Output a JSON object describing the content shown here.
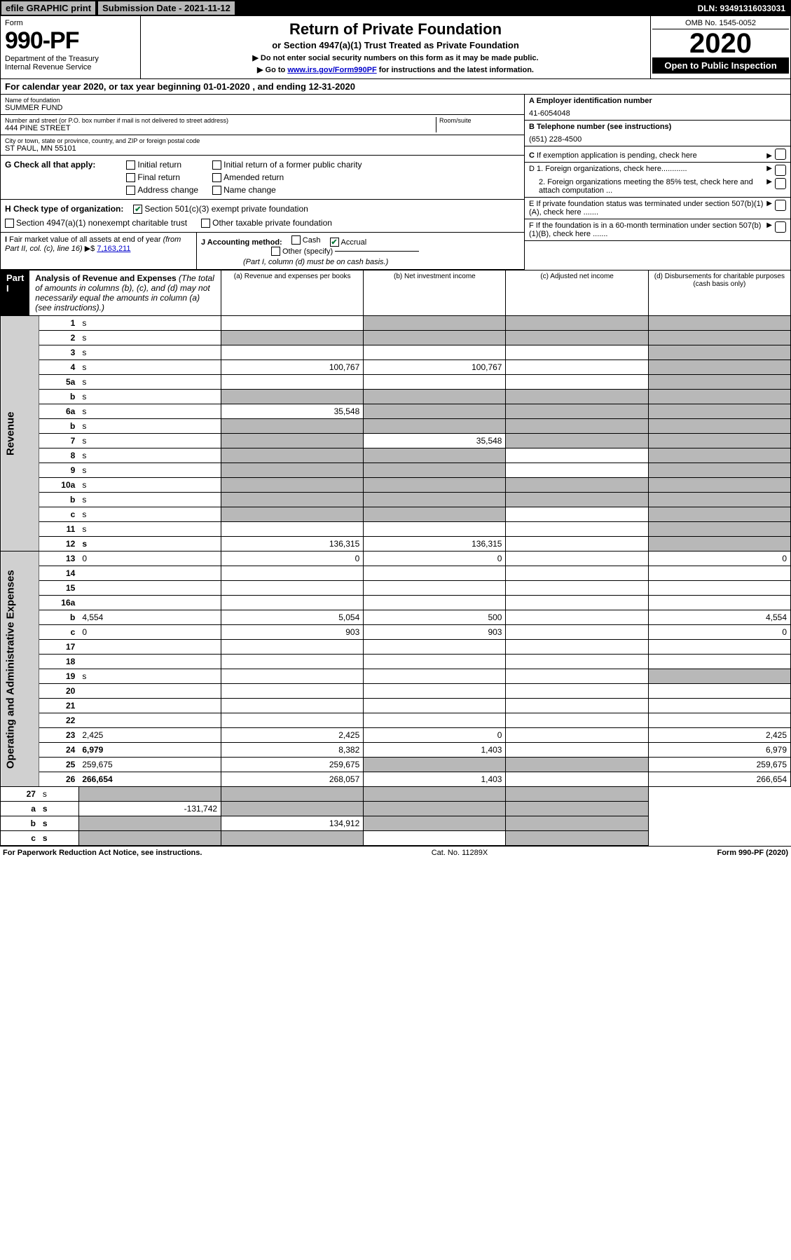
{
  "top_bar": {
    "efile": "efile GRAPHIC print",
    "submission": "Submission Date - 2021-11-12",
    "dln": "DLN: 93491316033031"
  },
  "header": {
    "form_word": "Form",
    "form_number": "990-PF",
    "dept1": "Department of the Treasury",
    "dept2": "Internal Revenue Service",
    "title": "Return of Private Foundation",
    "subtitle": "or Section 4947(a)(1) Trust Treated as Private Foundation",
    "note1": "▶ Do not enter social security numbers on this form as it may be made public.",
    "note2_pre": "▶ Go to ",
    "note2_link": "www.irs.gov/Form990PF",
    "note2_post": " for instructions and the latest information.",
    "omb": "OMB No. 1545-0052",
    "year": "2020",
    "open": "Open to Public Inspection"
  },
  "cal_year": "For calendar year 2020, or tax year beginning 01-01-2020             , and ending 12-31-2020",
  "foundation": {
    "name_label": "Name of foundation",
    "name": "SUMMER FUND",
    "addr_label": "Number and street (or P.O. box number if mail is not delivered to street address)",
    "addr": "444 PINE STREET",
    "room_label": "Room/suite",
    "city_label": "City or town, state or province, country, and ZIP or foreign postal code",
    "city": "ST PAUL, MN  55101"
  },
  "right_info": {
    "a_label": "A Employer identification number",
    "a_val": "41-6054048",
    "b_label": "B Telephone number (see instructions)",
    "b_val": "(651) 228-4500",
    "c_label": "C If exemption application is pending, check here",
    "d1": "D 1. Foreign organizations, check here............",
    "d2": "2. Foreign organizations meeting the 85% test, check here and attach computation ...",
    "e_label": "E  If private foundation status was terminated under section 507(b)(1)(A), check here .......",
    "f_label": "F  If the foundation is in a 60-month termination under section 507(b)(1)(B), check here ......."
  },
  "g_row": {
    "label": "G Check all that apply:",
    "opts": [
      "Initial return",
      "Initial return of a former public charity",
      "Final return",
      "Amended return",
      "Address change",
      "Name change"
    ]
  },
  "h_row": {
    "label": "H Check type of organization:",
    "opt1": "Section 501(c)(3) exempt private foundation",
    "opt2": "Section 4947(a)(1) nonexempt charitable trust",
    "opt3": "Other taxable private foundation"
  },
  "ij_row": {
    "i_label": "I Fair market value of all assets at end of year (from Part II, col. (c), line 16) ▶$ ",
    "i_val": "7,163,211",
    "j_label": "J Accounting method:",
    "j_cash": "Cash",
    "j_accrual": "Accrual",
    "j_other": "Other (specify)",
    "j_note": "(Part I, column (d) must be on cash basis.)"
  },
  "part1": {
    "badge": "Part I",
    "title": "Analysis of Revenue and Expenses",
    "title_note": " (The total of amounts in columns (b), (c), and (d) may not necessarily equal the amounts in column (a) (see instructions).)",
    "col_a": "(a)   Revenue and expenses per books",
    "col_b": "(b)   Net investment income",
    "col_c": "(c)   Adjusted net income",
    "col_d": "(d)   Disbursements for charitable purposes (cash basis only)"
  },
  "side_labels": {
    "revenue": "Revenue",
    "expenses": "Operating and Administrative Expenses"
  },
  "rows": [
    {
      "n": "1",
      "d": "s",
      "a": "",
      "b": "s",
      "c": "s"
    },
    {
      "n": "2",
      "d": "s",
      "a": "s",
      "b": "s",
      "c": "s"
    },
    {
      "n": "3",
      "d": "s",
      "a": "",
      "b": "",
      "c": ""
    },
    {
      "n": "4",
      "d": "s",
      "a": "100,767",
      "b": "100,767",
      "c": ""
    },
    {
      "n": "5a",
      "d": "s",
      "a": "",
      "b": "",
      "c": ""
    },
    {
      "n": "b",
      "d": "s",
      "a": "s",
      "b": "s",
      "c": "s"
    },
    {
      "n": "6a",
      "d": "s",
      "a": "35,548",
      "b": "s",
      "c": "s"
    },
    {
      "n": "b",
      "d": "s",
      "a": "s",
      "b": "s",
      "c": "s"
    },
    {
      "n": "7",
      "d": "s",
      "a": "s",
      "b": "35,548",
      "c": "s"
    },
    {
      "n": "8",
      "d": "s",
      "a": "s",
      "b": "s",
      "c": ""
    },
    {
      "n": "9",
      "d": "s",
      "a": "s",
      "b": "s",
      "c": ""
    },
    {
      "n": "10a",
      "d": "s",
      "a": "s",
      "b": "s",
      "c": "s"
    },
    {
      "n": "b",
      "d": "s",
      "a": "s",
      "b": "s",
      "c": "s"
    },
    {
      "n": "c",
      "d": "s",
      "a": "s",
      "b": "s",
      "c": ""
    },
    {
      "n": "11",
      "d": "s",
      "a": "",
      "b": "",
      "c": ""
    },
    {
      "n": "12",
      "d": "s",
      "bold": true,
      "a": "136,315",
      "b": "136,315",
      "c": ""
    }
  ],
  "exp_rows": [
    {
      "n": "13",
      "d": "0",
      "a": "0",
      "b": "0",
      "c": ""
    },
    {
      "n": "14",
      "d": "",
      "a": "",
      "b": "",
      "c": ""
    },
    {
      "n": "15",
      "d": "",
      "a": "",
      "b": "",
      "c": ""
    },
    {
      "n": "16a",
      "d": "",
      "a": "",
      "b": "",
      "c": ""
    },
    {
      "n": "b",
      "d": "4,554",
      "a": "5,054",
      "b": "500",
      "c": ""
    },
    {
      "n": "c",
      "d": "0",
      "a": "903",
      "b": "903",
      "c": ""
    },
    {
      "n": "17",
      "d": "",
      "a": "",
      "b": "",
      "c": ""
    },
    {
      "n": "18",
      "d": "",
      "a": "",
      "b": "",
      "c": ""
    },
    {
      "n": "19",
      "d": "s",
      "a": "",
      "b": "",
      "c": ""
    },
    {
      "n": "20",
      "d": "",
      "a": "",
      "b": "",
      "c": ""
    },
    {
      "n": "21",
      "d": "",
      "a": "",
      "b": "",
      "c": ""
    },
    {
      "n": "22",
      "d": "",
      "a": "",
      "b": "",
      "c": ""
    },
    {
      "n": "23",
      "d": "2,425",
      "a": "2,425",
      "b": "0",
      "c": ""
    },
    {
      "n": "24",
      "d": "6,979",
      "bold": true,
      "a": "8,382",
      "b": "1,403",
      "c": ""
    },
    {
      "n": "25",
      "d": "259,675",
      "a": "259,675",
      "b": "s",
      "c": "s"
    },
    {
      "n": "26",
      "d": "266,654",
      "bold": true,
      "a": "268,057",
      "b": "1,403",
      "c": ""
    }
  ],
  "bottom_rows": [
    {
      "n": "27",
      "d": "s",
      "a": "s",
      "b": "s",
      "c": "s"
    },
    {
      "n": "a",
      "d": "s",
      "bold": true,
      "a": "-131,742",
      "b": "s",
      "c": "s"
    },
    {
      "n": "b",
      "d": "s",
      "bold": true,
      "a": "s",
      "b": "134,912",
      "c": "s"
    },
    {
      "n": "c",
      "d": "s",
      "bold": true,
      "a": "s",
      "b": "s",
      "c": ""
    }
  ],
  "footer": {
    "left": "For Paperwork Reduction Act Notice, see instructions.",
    "center": "Cat. No. 11289X",
    "right": "Form 990-PF (2020)"
  },
  "colors": {
    "black": "#000000",
    "gray": "#b8b8b8",
    "sidegray": "#d0d0d0",
    "link": "#0000cc",
    "check": "#0a7a3a"
  }
}
